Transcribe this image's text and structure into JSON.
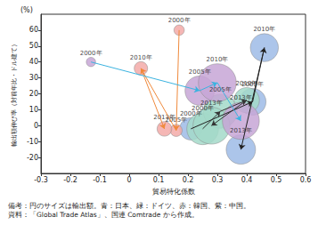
{
  "chart_data": {
    "type": "scatter",
    "y_unit": "(%)",
    "x_label": "貿易特化係数",
    "y_label": "輸出額伸び率（対前年比・ドル建て）",
    "notes": [
      "備考：円のサイズは輸出額。青：日本、緑：ドイツ、赤：韓国、紫：中国。",
      "資料：「Global Trade Atlas」、国連 Comtrade から作成。"
    ],
    "xlim": [
      -0.3,
      0.6
    ],
    "xticks": [
      -0.3,
      -0.2,
      -0.1,
      0,
      0.1,
      0.2,
      0.3,
      0.4,
      0.5,
      0.6
    ],
    "ylim": [
      -30,
      70
    ],
    "yticks": [
      -20,
      -10,
      0,
      10,
      20,
      30,
      40,
      50,
      60
    ],
    "grid": false,
    "series": [
      {
        "name": "日本",
        "color": "#9dbbe6",
        "labels": [
          "2000年",
          "2005年",
          "2010年",
          "2013年"
        ],
        "x": [
          0.21,
          0.42,
          0.46,
          0.38
        ],
        "values": [
          -2,
          15,
          49,
          -15
        ],
        "sizes": [
          700,
          1000,
          1100,
          1200
        ]
      },
      {
        "name": "ドイツ",
        "color": "#a3d9c9",
        "labels": [
          "2000年",
          "2005年",
          "2010年",
          "2013年"
        ],
        "x": [
          0.25,
          0.31,
          0.4,
          0.28
        ],
        "values": [
          -2,
          9,
          16,
          0
        ],
        "sizes": [
          1400,
          1600,
          900,
          1900
        ]
      },
      {
        "name": "韓国",
        "color": "#f3aaa8",
        "labels": [
          "2000年",
          "2005年",
          "2010年",
          "2013年"
        ],
        "x": [
          0.17,
          0.16,
          0.04,
          0.12
        ],
        "values": [
          60,
          -3,
          36,
          -2
        ],
        "sizes": [
          150,
          200,
          250,
          300
        ]
      },
      {
        "name": "中国",
        "color": "#c7a6d6",
        "labels": [
          "2000年",
          "2005年",
          "2010年",
          "2013年"
        ],
        "x": [
          -0.13,
          0.24,
          0.3,
          0.38
        ],
        "values": [
          40,
          22,
          27,
          3
        ],
        "sizes": [
          120,
          1200,
          2000,
          1900
        ]
      }
    ]
  }
}
